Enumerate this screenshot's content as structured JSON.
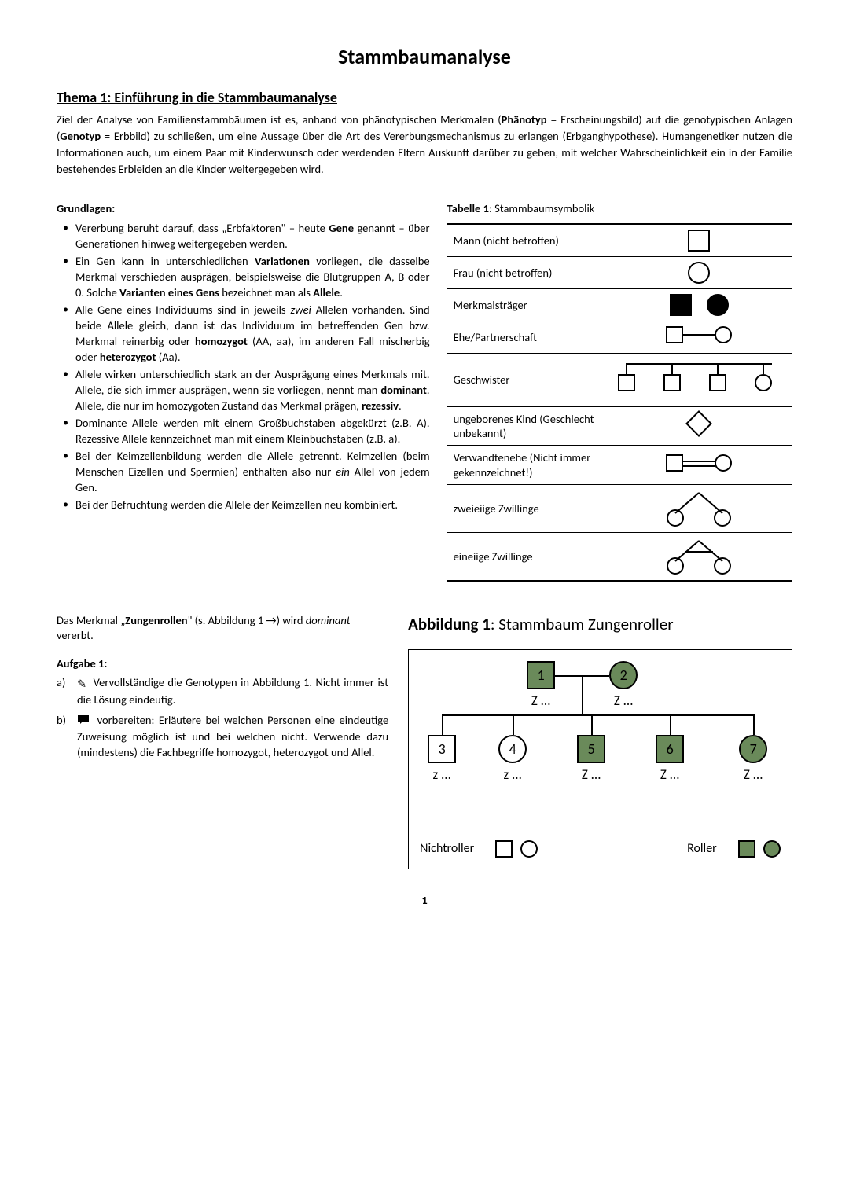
{
  "title": "Stammbaumanalyse",
  "theme_heading": "Thema 1: Einführung in die Stammbaumanalyse",
  "intro_html": "Ziel der Analyse von Familienstammbäumen ist es, anhand von phänotypischen Merkmalen (<b>Phänotyp</b> = Erscheinungsbild) auf die genotypischen Anlagen (<b>Genotyp</b> = Erbbild) zu schließen, um eine Aussage über die Art des Vererbungsmechanismus zu erlangen (Erbganghypothese). Humangenetiker nutzen die Informationen auch, um einem Paar mit Kinderwunsch oder werdenden Eltern Auskunft darüber zu geben, mit welcher Wahrscheinlichkeit ein in der Familie bestehendes Erbleiden an die Kinder weitergegeben wird.",
  "grundlagen_label": "Grundlagen:",
  "bullets_html": [
    "Vererbung beruht darauf, dass „Erbfaktoren\" – heute <b>Gene</b> genannt – über Generationen hinweg weitergegeben werden.",
    "Ein Gen kann in unterschiedlichen <b>Variationen</b> vorliegen, die dasselbe Merkmal verschieden ausprägen, beispielsweise die Blutgruppen A, B oder 0. Solche <b>Varianten eines Gens</b> bezeichnet man als <b>Allele</b>.",
    "Alle Gene eines Individuums sind in jeweils <i>zwei</i> Allelen vorhanden. Sind beide Allele gleich, dann ist das Individuum im betreffenden Gen bzw. Merkmal reinerbig oder <b>homozygot</b> (AA, aa), im anderen Fall mischerbig oder <b>heterozygot</b> (Aa).",
    "Allele wirken unterschiedlich stark an der Ausprägung eines Merkmals mit. Allele, die sich immer ausprägen, wenn sie vorliegen, nennt man <b>dominant</b>. Allele, die nur im homozygoten Zustand das Merkmal prägen, <b>rezessiv</b>.",
    "Dominante Allele werden mit einem Großbuchstaben abgekürzt (z.B. A). Rezessive Allele kennzeichnet man mit einem Kleinbuchstaben (z.B. a).",
    "Bei der Keimzellenbildung werden die Allele getrennt. Keimzellen (beim Menschen Eizellen und Spermien) enthalten also nur <i>ein</i> Allel von jedem Gen.",
    "Bei der Befruchtung werden die Allele der Keimzellen neu kombiniert."
  ],
  "table_caption_html": "<b>Tabelle 1</b>: Stammbaumsymbolik",
  "table_rows": [
    {
      "label": "Mann (nicht betroffen)"
    },
    {
      "label": "Frau (nicht betroffen)"
    },
    {
      "label": "Merkmalsträger"
    },
    {
      "label": "Ehe/Partnerschaft"
    },
    {
      "label": "Geschwister"
    },
    {
      "label": "ungeborenes Kind (Geschlecht unbekannt)"
    },
    {
      "label": "Verwandtenehe (Nicht immer gekennzeichnet!)"
    },
    {
      "label": "zweieiige Zwillinge"
    },
    {
      "label": "eineiige Zwillinge"
    }
  ],
  "merkmal_html": "Das Merkmal „<b>Zungenrollen</b>\" (s. Abbildung 1 →) wird <i>dominant</i> vererbt.",
  "aufgabe_label": "Aufgabe 1:",
  "tasks": [
    {
      "letter": "a)",
      "icon": "pencil",
      "text": "Vervollständige die Genotypen in Abbildung 1. Nicht immer ist die Lösung eindeutig."
    },
    {
      "letter": "b)",
      "icon": "speech",
      "text": "vorbereiten: Erläutere bei welchen Personen eine eindeutige Zuweisung möglich ist und bei welchen nicht. Verwende dazu (mindestens) die Fachbegriffe homozygot, heterozygot und Allel."
    }
  ],
  "abbildung_title_html": "<b>Abbildung 1</b>: Stammbaum Zungenroller",
  "pedigree": {
    "shaded_color": "#6a8a5a",
    "nodes": {
      "1": {
        "shape": "square",
        "shaded": true,
        "label": "Z ..."
      },
      "2": {
        "shape": "circle",
        "shaded": true,
        "label": "Z ..."
      },
      "3": {
        "shape": "square",
        "shaded": false,
        "label": "z ..."
      },
      "4": {
        "shape": "circle",
        "shaded": false,
        "label": "z ..."
      },
      "5": {
        "shape": "square",
        "shaded": true,
        "label": "Z ..."
      },
      "6": {
        "shape": "square",
        "shaded": true,
        "label": "Z ..."
      },
      "7": {
        "shape": "circle",
        "shaded": true,
        "label": "Z ..."
      }
    },
    "legend": {
      "left": "Nichtroller",
      "right": "Roller"
    }
  },
  "page_number": "1"
}
